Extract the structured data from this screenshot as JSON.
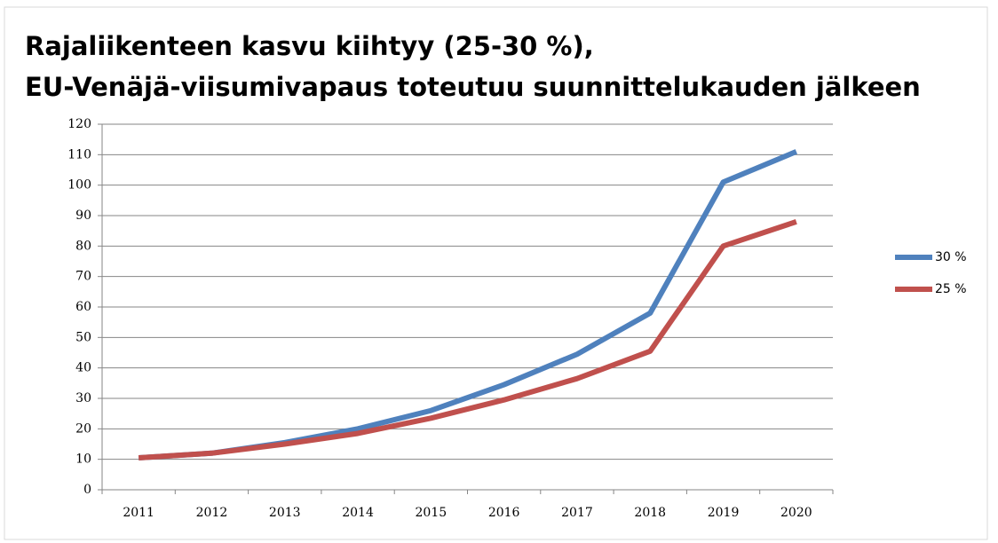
{
  "chart_data": {
    "type": "line",
    "title": [
      "Rajaliikenteen kasvu kiihtyy (25-30 %),",
      "EU-Venäjä-viisumivapaus toteutuu suunnittelukauden jälkeen"
    ],
    "categories": [
      "2011",
      "2012",
      "2013",
      "2014",
      "2015",
      "2016",
      "2017",
      "2018",
      "2019",
      "2020"
    ],
    "series": [
      {
        "name": "30 %",
        "color": "#4f81bd",
        "values": [
          10.5,
          12,
          15.5,
          20,
          26,
          34.5,
          44.5,
          58,
          101,
          111
        ]
      },
      {
        "name": "25 %",
        "color": "#c0504d",
        "values": [
          10.5,
          12,
          15,
          18.5,
          23.5,
          29.5,
          36.5,
          45.5,
          80,
          88
        ]
      }
    ],
    "ylim": [
      0,
      120
    ],
    "yticks": [
      0,
      10,
      20,
      30,
      40,
      50,
      60,
      70,
      80,
      90,
      100,
      110,
      120
    ],
    "grid": true,
    "legend": "right"
  }
}
